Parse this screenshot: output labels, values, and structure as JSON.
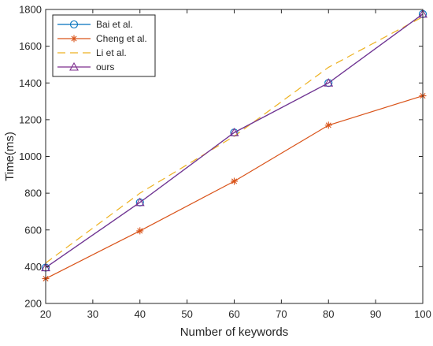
{
  "chart_data": {
    "type": "line",
    "title": "",
    "xlabel": "Number of keywords",
    "ylabel": "Time(ms)",
    "xlim": [
      20,
      100
    ],
    "ylim": [
      200,
      1800
    ],
    "x_ticks": [
      20,
      30,
      40,
      50,
      60,
      70,
      80,
      90,
      100
    ],
    "y_ticks": [
      200,
      400,
      600,
      800,
      1000,
      1200,
      1400,
      1600,
      1800
    ],
    "grid": false,
    "legend_position": "top-left",
    "x": [
      20,
      40,
      60,
      80,
      100
    ],
    "series": [
      {
        "name": "Bai et al.",
        "values": [
          395,
          750,
          1130,
          1400,
          1775
        ],
        "color": "#0072BD",
        "marker": "circle",
        "line_style": "solid"
      },
      {
        "name": "Cheng et al.",
        "values": [
          335,
          595,
          865,
          1170,
          1330
        ],
        "color": "#D95319",
        "marker": "asterisk",
        "line_style": "solid"
      },
      {
        "name": "Li et al.",
        "values": [
          420,
          800,
          1110,
          1485,
          1760
        ],
        "color": "#EDB120",
        "marker": "none",
        "line_style": "dashed"
      },
      {
        "name": "ours",
        "values": [
          395,
          750,
          1130,
          1400,
          1775
        ],
        "color": "#7E2F8E",
        "marker": "triangle",
        "line_style": "solid"
      }
    ]
  }
}
